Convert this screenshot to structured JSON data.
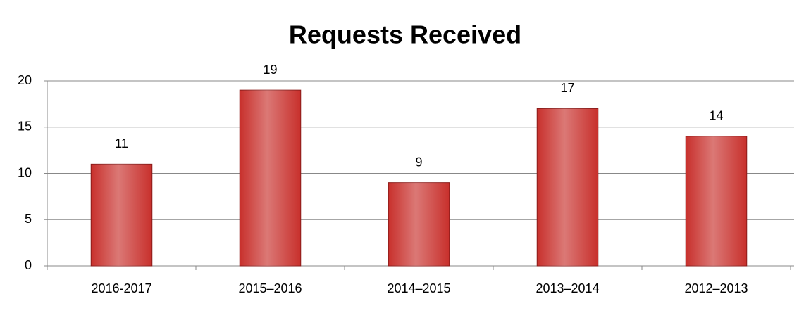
{
  "chart_data": {
    "type": "bar",
    "title": "Requests Received",
    "categories": [
      "2016-2017",
      "2015–2016",
      "2014–2015",
      "2013–2014",
      "2012–2013"
    ],
    "values": [
      11,
      19,
      9,
      17,
      14
    ],
    "color": "#c8302c",
    "ylim": [
      0,
      20
    ],
    "yticks": [
      0,
      5,
      10,
      15,
      20
    ],
    "grid": true
  }
}
